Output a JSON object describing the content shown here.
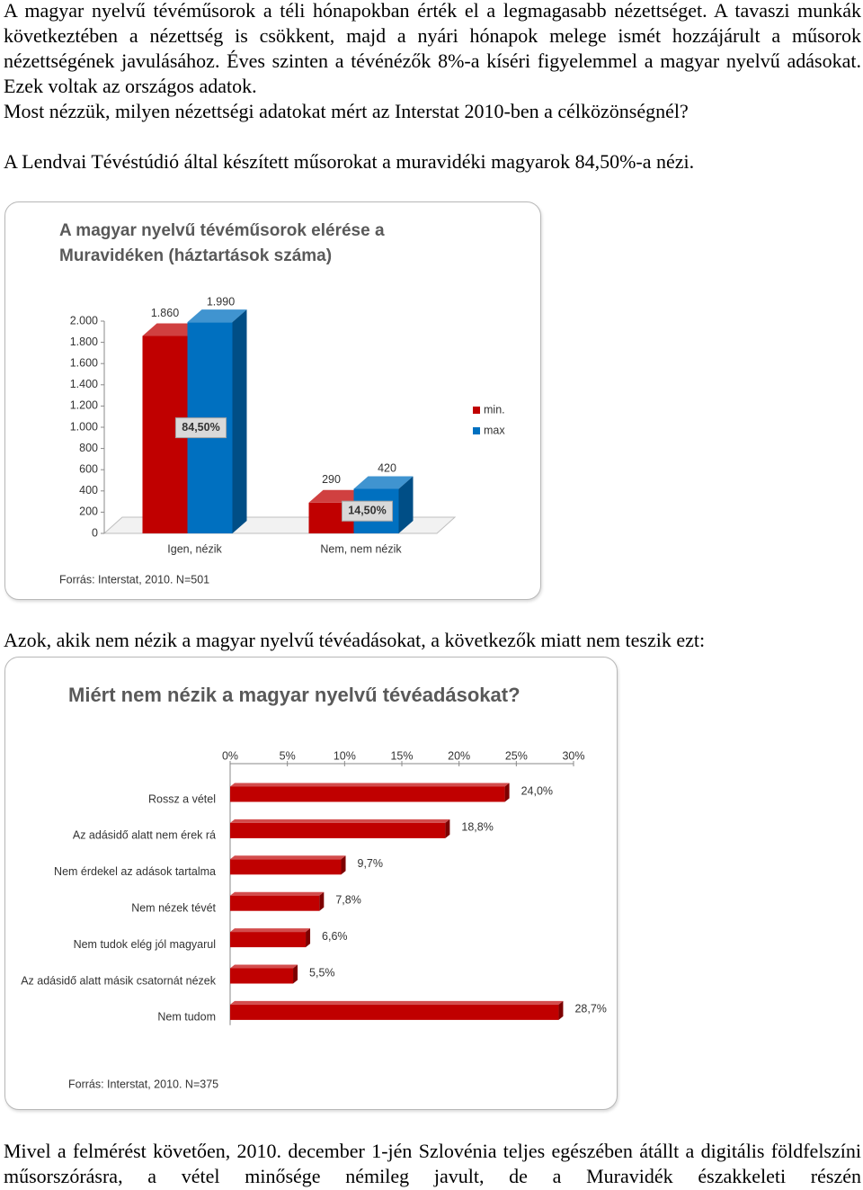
{
  "paragraphs": [
    "A magyar nyelvű tévéműsorok a téli hónapokban érték el a legmagasabb nézettséget. A tavaszi munkák következtében a nézettség is csökkent, majd a nyári hónapok melege ismét hozzájárult a műsorok nézettségének javulásához. Éves szinten a tévénézők 8%-a kíséri figyelemmel a magyar nyelvű adásokat. Ezek voltak az országos adatok.",
    "Most nézzük, milyen nézettségi adatokat mért az Interstat 2010-ben a célközönségnél?",
    "A Lendvai Tévéstúdió által készített műsorokat a muravidéki magyarok 84,50%-a nézi."
  ],
  "caption": "Azok, akik nem nézik a magyar nyelvű tévéadásokat, a következők miatt nem teszik ezt:",
  "closing": "Mivel a felmérést követően, 2010. december 1-jén Szlovénia teljes egészében átállt a digitális földfelszíni műsorszórásra, a vétel minősége némileg javult, de a Muravidék északkeleti részén",
  "chart_data": [
    {
      "type": "bar",
      "three_d": true,
      "title": "A magyar nyelvű tévéműsorok elérése a Muravidéken (háztartások száma)",
      "categories": [
        "Igen, nézik",
        "Nem, nem nézik"
      ],
      "series": [
        {
          "name": "min.",
          "color": "#c00000",
          "values": [
            1860,
            290
          ],
          "value_labels": [
            "1.860",
            "290"
          ]
        },
        {
          "name": "max",
          "color": "#0070c0",
          "values": [
            1990,
            420
          ],
          "value_labels": [
            "1.990",
            "420"
          ]
        }
      ],
      "annotations": [
        "84,50%",
        "14,50%"
      ],
      "ylim": [
        0,
        2000
      ],
      "yticks": [
        0,
        200,
        400,
        600,
        800,
        {
          "value": 1000,
          "label": "1.000"
        },
        {
          "value": 1200,
          "label": "1.200"
        },
        {
          "value": 1400,
          "label": "1.400"
        },
        {
          "value": 1600,
          "label": "1.600"
        },
        {
          "value": 1800,
          "label": "1.800"
        },
        {
          "value": 2000,
          "label": "2.000"
        }
      ],
      "legend": "right",
      "source": "Forrás: Interstat, 2010. N=501"
    },
    {
      "type": "bar",
      "orientation": "horizontal",
      "three_d": true,
      "title": "Miért nem nézik a magyar nyelvű tévéadásokat?",
      "categories": [
        "Rossz a vétel",
        "Az adásidő alatt nem érek rá",
        "Nem érdekel az adások tartalma",
        "Nem nézek tévét",
        "Nem tudok elég jól magyarul",
        "Az adásidő alatt másik csatornát nézek",
        "Nem tudom"
      ],
      "values": [
        24.0,
        18.8,
        9.7,
        7.8,
        6.6,
        5.5,
        28.7
      ],
      "value_labels": [
        "24,0%",
        "18,8%",
        "9,7%",
        "7,8%",
        "6,6%",
        "5,5%",
        "28,7%"
      ],
      "color": "#c00000",
      "xlim": [
        0,
        30
      ],
      "xticks": [
        {
          "value": 0,
          "label": "0%"
        },
        {
          "value": 5,
          "label": "5%"
        },
        {
          "value": 10,
          "label": "10%"
        },
        {
          "value": 15,
          "label": "15%"
        },
        {
          "value": 20,
          "label": "20%"
        },
        {
          "value": 25,
          "label": "25%"
        },
        {
          "value": 30,
          "label": "30%"
        }
      ],
      "source": "Forrás: Interstat, 2010. N=375"
    }
  ]
}
